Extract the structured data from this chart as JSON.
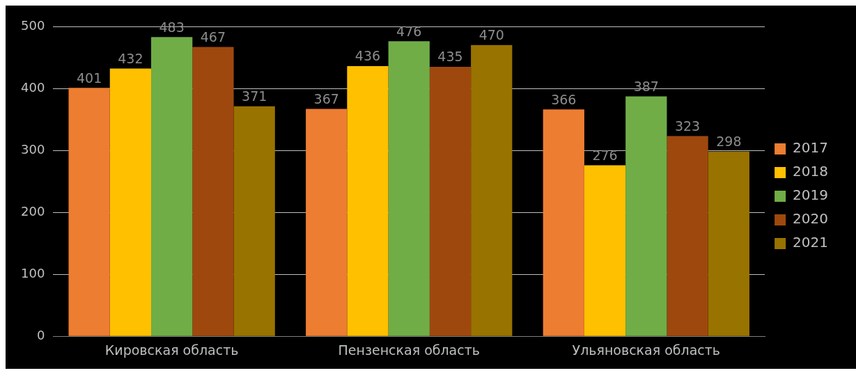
{
  "chart_data": {
    "type": "bar",
    "categories": [
      "Кировская область",
      "Пензенская область",
      "Ульяновская область"
    ],
    "series": [
      {
        "name": "2017",
        "color": "#ed7d31",
        "values": [
          401,
          367,
          366
        ]
      },
      {
        "name": "2018",
        "color": "#ffc000",
        "values": [
          432,
          436,
          276
        ]
      },
      {
        "name": "2019",
        "color": "#70ad47",
        "values": [
          483,
          476,
          387
        ]
      },
      {
        "name": "2020",
        "color": "#9e480e",
        "values": [
          467,
          435,
          323
        ]
      },
      {
        "name": "2021",
        "color": "#997300",
        "values": [
          371,
          470,
          298
        ]
      }
    ],
    "ylim": [
      0,
      500
    ],
    "yticks": [
      0,
      100,
      200,
      300,
      400,
      500
    ],
    "grid": "y",
    "legend": "right",
    "data_labels": true
  }
}
